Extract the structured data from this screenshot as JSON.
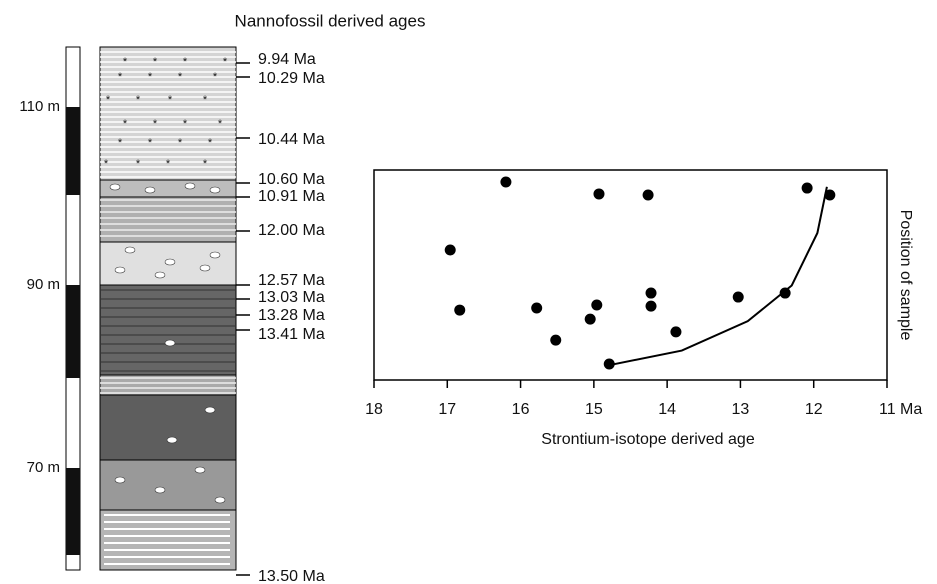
{
  "column": {
    "title": "Nannofossil derived ages",
    "depths": [
      "110 m",
      "90 m",
      "70 m"
    ],
    "ages": [
      "9.94 Ma",
      "10.29 Ma",
      "10.44 Ma",
      "10.60 Ma",
      "10.91 Ma",
      "12.00 Ma",
      "12.57 Ma",
      "13.03 Ma",
      "13.28 Ma",
      "13.41 Ma",
      "13.50 Ma"
    ]
  },
  "chart_data": {
    "type": "scatter",
    "x_label": "Strontium-isotope derived age",
    "y_label": "Position of sample",
    "color": "#000000",
    "x": [
      16.2,
      14.93,
      14.26,
      12.09,
      11.78,
      16.96,
      16.83,
      15.78,
      14.96,
      15.05,
      14.22,
      14.22,
      13.03,
      12.39,
      15.52,
      13.88,
      14.79
    ],
    "y": [
      94.3,
      88.6,
      88.1,
      91.4,
      88.1,
      61.9,
      33.3,
      34.3,
      35.7,
      29.0,
      41.4,
      35.2,
      39.5,
      41.4,
      19.0,
      22.9,
      7.6
    ],
    "curve": {
      "x": [
        14.8,
        13.8,
        12.9,
        12.3,
        11.95,
        11.82
      ],
      "y": [
        7,
        14,
        28,
        45,
        70,
        92
      ]
    },
    "xlim": [
      18,
      11
    ],
    "ylim": [
      0,
      100
    ],
    "xticks": [
      18,
      17,
      16,
      15,
      14,
      13,
      12,
      {
        "value": 11,
        "label": "11 Ma"
      }
    ]
  }
}
